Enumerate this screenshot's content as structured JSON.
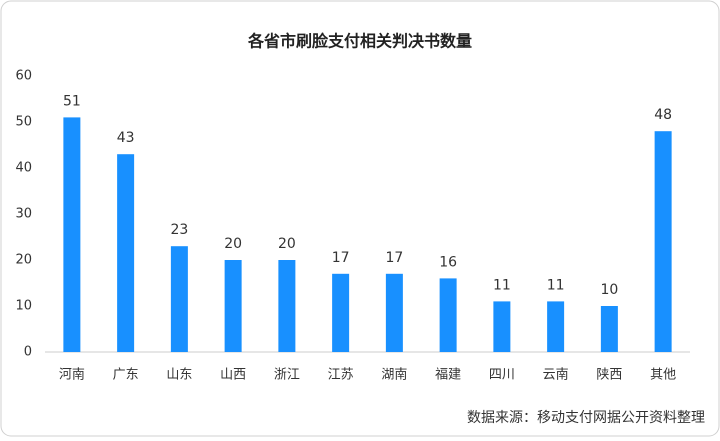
{
  "chart_data": {
    "type": "bar",
    "title": "各省市刷脸支付相关判决书数量",
    "categories": [
      "河南",
      "广东",
      "山东",
      "山西",
      "浙江",
      "江苏",
      "湖南",
      "福建",
      "四川",
      "云南",
      "陕西",
      "其他"
    ],
    "values": [
      51,
      43,
      23,
      20,
      20,
      17,
      17,
      16,
      11,
      11,
      10,
      48
    ],
    "color": "#1890ff",
    "ylim": [
      0,
      60
    ],
    "yticks": [
      0,
      10,
      20,
      30,
      40,
      50,
      60
    ],
    "source": "数据来源：移动支付网据公开资料整理"
  }
}
